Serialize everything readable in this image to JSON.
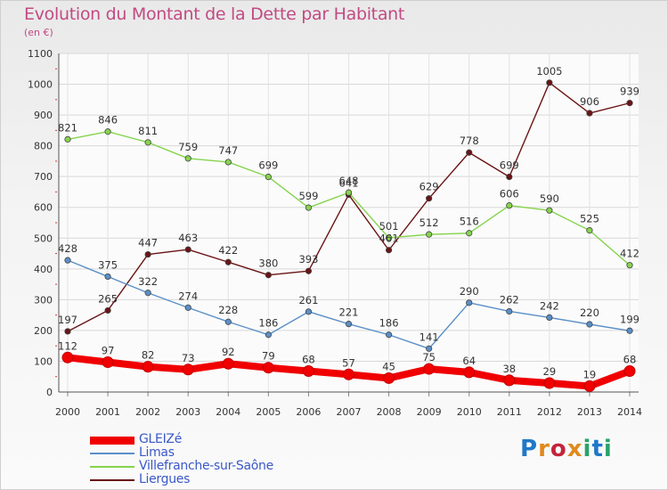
{
  "title": "Evolution du Montant de la Dette par Habitant",
  "unit": "(en €)",
  "logo": [
    "P",
    "r",
    "o",
    "x",
    "i",
    "t",
    "i"
  ],
  "logo_colors": [
    "#1f78c8",
    "#e08a1c",
    "#c3253a",
    "#e08a1c",
    "#2aa36a",
    "#1f78c8",
    "#2aa36a"
  ],
  "chart_data": {
    "type": "line",
    "x": [
      "2000",
      "2001",
      "2002",
      "2003",
      "2004",
      "2005",
      "2006",
      "2007",
      "2008",
      "2009",
      "2010",
      "2011",
      "2012",
      "2013",
      "2014"
    ],
    "ylim": [
      0,
      1100
    ],
    "yticks": [
      0,
      100,
      200,
      300,
      400,
      500,
      600,
      700,
      800,
      900,
      1000,
      1100
    ],
    "grid": true,
    "legend_position": "bottom-left",
    "series": [
      {
        "name": "GLEIZé",
        "color": "#f00000",
        "values": [
          112,
          97,
          82,
          73,
          92,
          79,
          68,
          57,
          45,
          75,
          64,
          38,
          29,
          19,
          68
        ]
      },
      {
        "name": "Limas",
        "color": "#5a8fc7",
        "values": [
          428,
          375,
          322,
          274,
          228,
          186,
          261,
          221,
          186,
          141,
          290,
          262,
          242,
          220,
          199
        ]
      },
      {
        "name": "Villefranche-sur-Saône",
        "color": "#86d44e",
        "values": [
          821,
          846,
          811,
          759,
          747,
          699,
          599,
          648,
          501,
          512,
          516,
          606,
          590,
          525,
          412
        ]
      },
      {
        "name": "Liergues",
        "color": "#6a1416",
        "values": [
          197,
          265,
          447,
          463,
          422,
          380,
          393,
          641,
          461,
          629,
          778,
          699,
          1005,
          906,
          939
        ]
      }
    ]
  }
}
